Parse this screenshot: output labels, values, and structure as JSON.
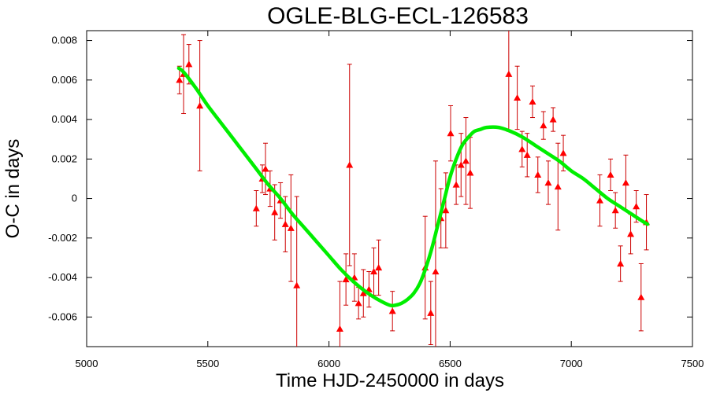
{
  "chart_data": {
    "type": "scatter",
    "title": "OGLE-BLG-ECL-126583",
    "xlabel": "Time HJD-2450000 in days",
    "ylabel": "O-C in days",
    "xlim": [
      5000,
      7500
    ],
    "ylim": [
      -0.0075,
      0.0085
    ],
    "xticks": [
      5000,
      5500,
      6000,
      6500,
      7000,
      7500
    ],
    "xtick_labels": [
      "5000",
      "5500",
      "6000",
      "6500",
      "7000",
      "7500"
    ],
    "yticks": [
      -0.006,
      -0.004,
      -0.002,
      0,
      0.002,
      0.004,
      0.006,
      0.008
    ],
    "ytick_labels": [
      "-0.006",
      "-0.004",
      "-0.002",
      "0",
      "0.002",
      "0.004",
      "0.006",
      "0.008"
    ],
    "grid": false,
    "colors": {
      "points": "#ff0000",
      "errorbars": "#cc0000",
      "fit": "#00ee00"
    },
    "series": [
      {
        "kind": "points-with-errorbars",
        "points": [
          {
            "x": 5383,
            "y": 0.006,
            "err": 0.0007
          },
          {
            "x": 5400,
            "y": 0.0063,
            "err": 0.002
          },
          {
            "x": 5422,
            "y": 0.0068,
            "err": 0.001
          },
          {
            "x": 5467,
            "y": 0.0047,
            "err": 0.0033
          },
          {
            "x": 5700,
            "y": -0.0005,
            "err": 0.0009
          },
          {
            "x": 5725,
            "y": 0.001,
            "err": 0.0007
          },
          {
            "x": 5738,
            "y": 0.0015,
            "err": 0.0013
          },
          {
            "x": 5757,
            "y": 0.0005,
            "err": 0.0009
          },
          {
            "x": 5776,
            "y": -0.0007,
            "err": 0.0014
          },
          {
            "x": 5800,
            "y": -0.0001,
            "err": 0.0009
          },
          {
            "x": 5820,
            "y": -0.0013,
            "err": 0.0014
          },
          {
            "x": 5843,
            "y": -0.0015,
            "err": 0.0027
          },
          {
            "x": 5867,
            "y": -0.0044,
            "err": 0.0045
          },
          {
            "x": 6045,
            "y": -0.0066,
            "err": 0.0024
          },
          {
            "x": 6070,
            "y": -0.0041,
            "err": 0.0013
          },
          {
            "x": 6085,
            "y": 0.0017,
            "err": 0.0051
          },
          {
            "x": 6105,
            "y": -0.004,
            "err": 0.0012
          },
          {
            "x": 6122,
            "y": -0.0053,
            "err": 0.0008
          },
          {
            "x": 6142,
            "y": -0.0048,
            "err": 0.0012
          },
          {
            "x": 6165,
            "y": -0.0046,
            "err": 0.0009
          },
          {
            "x": 6185,
            "y": -0.0037,
            "err": 0.0012
          },
          {
            "x": 6205,
            "y": -0.0035,
            "err": 0.0014
          },
          {
            "x": 6262,
            "y": -0.0057,
            "err": 0.001
          },
          {
            "x": 6397,
            "y": -0.0035,
            "err": 0.0026
          },
          {
            "x": 6420,
            "y": -0.0058,
            "err": 0.0016
          },
          {
            "x": 6440,
            "y": -0.0037,
            "err": 0.0056
          },
          {
            "x": 6462,
            "y": -0.001,
            "err": 0.0015
          },
          {
            "x": 6482,
            "y": -0.0006,
            "err": 0.0019
          },
          {
            "x": 6502,
            "y": 0.0033,
            "err": 0.0014
          },
          {
            "x": 6525,
            "y": 0.0007,
            "err": 0.001
          },
          {
            "x": 6545,
            "y": 0.0017,
            "err": 0.0016
          },
          {
            "x": 6565,
            "y": 0.0019,
            "err": 0.0022
          },
          {
            "x": 6583,
            "y": 0.0013,
            "err": 0.0018
          },
          {
            "x": 6742,
            "y": 0.0063,
            "err": 0.0029
          },
          {
            "x": 6777,
            "y": 0.0051,
            "err": 0.0016
          },
          {
            "x": 6797,
            "y": 0.0025,
            "err": 0.0009
          },
          {
            "x": 6818,
            "y": 0.0022,
            "err": 0.0011
          },
          {
            "x": 6840,
            "y": 0.0049,
            "err": 0.0008
          },
          {
            "x": 6862,
            "y": 0.0012,
            "err": 0.0009
          },
          {
            "x": 6885,
            "y": 0.0037,
            "err": 0.0007
          },
          {
            "x": 6905,
            "y": 0.0008,
            "err": 0.0011
          },
          {
            "x": 6925,
            "y": 0.004,
            "err": 0.0006
          },
          {
            "x": 6945,
            "y": 0.0006,
            "err": 0.0022
          },
          {
            "x": 6967,
            "y": 0.0023,
            "err": 0.0009
          },
          {
            "x": 7118,
            "y": -0.0001,
            "err": 0.0013
          },
          {
            "x": 7162,
            "y": 0.0012,
            "err": 0.0008
          },
          {
            "x": 7182,
            "y": -0.0006,
            "err": 0.0009
          },
          {
            "x": 7203,
            "y": -0.0033,
            "err": 0.0009
          },
          {
            "x": 7225,
            "y": 0.0008,
            "err": 0.0014
          },
          {
            "x": 7245,
            "y": -0.0018,
            "err": 0.001
          },
          {
            "x": 7268,
            "y": -0.0004,
            "err": 0.0008
          },
          {
            "x": 7288,
            "y": -0.005,
            "err": 0.0017
          },
          {
            "x": 7310,
            "y": -0.0012,
            "err": 0.0014
          }
        ]
      },
      {
        "kind": "fit-curve",
        "x": [
          5380,
          5400,
          5450,
          5500,
          5550,
          5600,
          5650,
          5700,
          5750,
          5800,
          5850,
          5900,
          5950,
          6000,
          6050,
          6100,
          6150,
          6200,
          6250,
          6275,
          6300,
          6325,
          6350,
          6375,
          6400,
          6425,
          6450,
          6475,
          6500,
          6525,
          6550,
          6575,
          6600,
          6625,
          6650,
          6700,
          6750,
          6800,
          6850,
          6900,
          6950,
          7000,
          7050,
          7100,
          7150,
          7200,
          7250,
          7300,
          7315
        ],
        "y": [
          0.0066,
          0.0064,
          0.0056,
          0.0047,
          0.0039,
          0.0031,
          0.0023,
          0.0015,
          0.0007,
          0.0,
          -0.0008,
          -0.0015,
          -0.0022,
          -0.0029,
          -0.0036,
          -0.0042,
          -0.0047,
          -0.0051,
          -0.0054,
          -0.0054,
          -0.0053,
          -0.0051,
          -0.0048,
          -0.0043,
          -0.0035,
          -0.0025,
          -0.0013,
          -0.0001,
          0.0011,
          0.002,
          0.0027,
          0.0031,
          0.0034,
          0.0035,
          0.0036,
          0.0036,
          0.0034,
          0.0031,
          0.0027,
          0.0023,
          0.0019,
          0.0014,
          0.001,
          0.0005,
          0.0,
          -0.0004,
          -0.0008,
          -0.0012,
          -0.0013
        ]
      }
    ]
  }
}
